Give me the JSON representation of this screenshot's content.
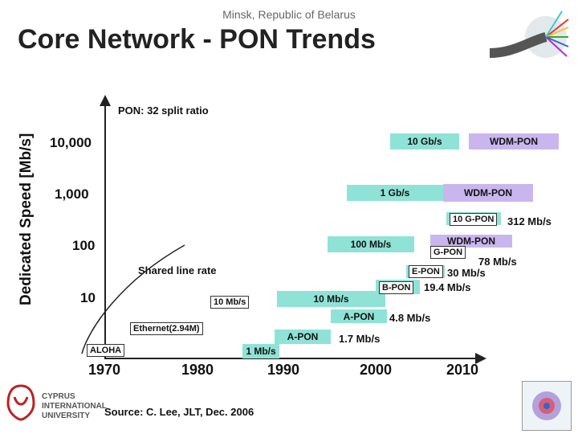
{
  "header": {
    "location": "Minsk, Republic of Belarus",
    "title": "Core Network - PON Trends"
  },
  "chart_data": {
    "type": "scatter",
    "ylabel": "Dedicated Speed [Mb/s]",
    "y_scale": "log",
    "y_ticks": [
      "10,000",
      "1,000",
      "100",
      "10"
    ],
    "x_ticks": [
      "1970",
      "1980",
      "1990",
      "2000",
      "2010"
    ],
    "subtitle": "PON: 32 split ratio",
    "points": [
      {
        "label": "ALOHA",
        "x": 1970,
        "y": null
      },
      {
        "label": "Ethernet(2.94M)",
        "x": 1976,
        "y": 2.94
      },
      {
        "label": "10 Mb/s",
        "x": 1984,
        "y": 10
      },
      {
        "label": "1 Mb/s",
        "x": 1987,
        "y": 1
      },
      {
        "label": "A-PON",
        "x": 1993,
        "y": 1.7
      },
      {
        "label": "10 Mb/s",
        "x": 1996,
        "y": 10
      },
      {
        "label": "100 Mb/s",
        "x": 1999,
        "y": 100
      },
      {
        "label": "1 Gb/s",
        "x": 2000,
        "y": 1000
      },
      {
        "label": "10 Gb/s",
        "x": 2003,
        "y": 10000
      },
      {
        "label": "A-PON",
        "x": 1998,
        "y": 4.8
      },
      {
        "label": "B-PON",
        "x": 2002,
        "y": 19.4
      },
      {
        "label": "E-PON",
        "x": 2004,
        "y": 30
      },
      {
        "label": "G-PON",
        "x": 2006,
        "y": 78
      },
      {
        "label": "WDM-PON",
        "x": 2007,
        "y": 100
      },
      {
        "label": "10 G-PON",
        "x": 2007,
        "y": 312
      },
      {
        "label": "WDM-PON",
        "x": 2009,
        "y": 1000
      },
      {
        "label": "WDM-PON",
        "x": 2009,
        "y": 10000
      }
    ]
  },
  "labels": {
    "shared_line_rate": "Shared line rate",
    "aloha": "ALOHA",
    "ethernet": "Ethernet(2.94M)",
    "ten_mbs_left": "10 Mb/s",
    "one_mbs": "1 Mb/s",
    "apon_low": "A-PON",
    "apon_low_rate": "1.7 Mb/s",
    "ten_mbs_box": "10 Mb/s",
    "apon_mid": "A-PON",
    "apon_mid_rate": "4.8 Mb/s",
    "bpon": "B-PON",
    "bpon_rate": "19.4 Mb/s",
    "epon": "E-PON",
    "epon_rate": "30 Mb/s",
    "gpon": "G-PON",
    "gpon_rate": "78 Mb/s",
    "wdm_pon_100": "WDM-PON",
    "hundred_mbs": "100 Mb/s",
    "tengpon": "10 G-PON",
    "tengpon_rate": "312 Mb/s",
    "one_gbs": "1 Gb/s",
    "wdm_pon_1g": "WDM-PON",
    "ten_gbs": "10 Gb/s",
    "wdm_pon_10g": "WDM-PON"
  },
  "source": "Source: C. Lee, JLT, Dec. 2006",
  "university": {
    "line1": "CYPRUS",
    "line2": "INTERNATIONAL",
    "line3": "UNIVERSITY"
  },
  "colors": {
    "teal": "#8fe3d6",
    "lavender": "#c9b6ee"
  }
}
